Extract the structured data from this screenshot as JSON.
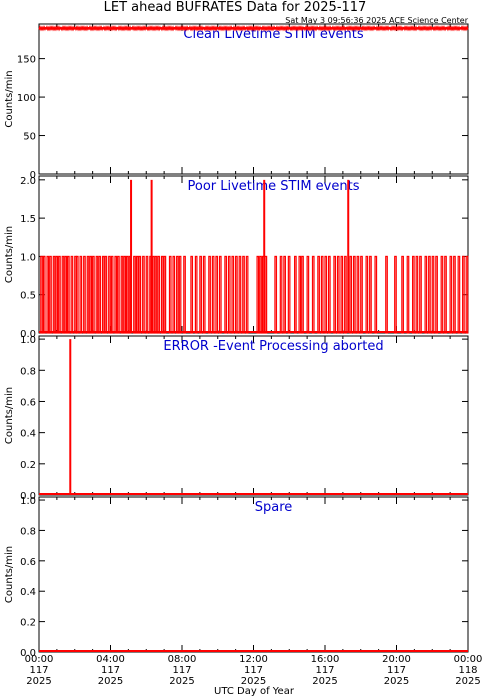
{
  "title": "LET ahead BUFRATES Data for 2025-117",
  "timestamp": "Sat May  3 09:56:36 2025 ACE Science Center",
  "xlabel": "UTC Day of Year",
  "x_ticks": [
    {
      "time": "00:00",
      "doy": "117",
      "year": "2025"
    },
    {
      "time": "04:00",
      "doy": "117",
      "year": "2025"
    },
    {
      "time": "08:00",
      "doy": "117",
      "year": "2025"
    },
    {
      "time": "12:00",
      "doy": "117",
      "year": "2025"
    },
    {
      "time": "16:00",
      "doy": "117",
      "year": "2025"
    },
    {
      "time": "20:00",
      "doy": "117",
      "year": "2025"
    },
    {
      "time": "00:00",
      "doy": "118",
      "year": "2025"
    }
  ],
  "colors": {
    "data": "#ff0000",
    "panel_title": "#0000cc",
    "axes": "#000000"
  },
  "chart_data": [
    {
      "type": "line",
      "title": "Clean Livetime STIM events",
      "ylabel": "Counts/min",
      "ylim": [
        0,
        195
      ],
      "yticks": [
        0,
        50,
        100,
        150
      ],
      "xlim_hours": [
        0,
        24
      ],
      "baseline": 189,
      "noise": [
        188,
        191
      ],
      "spikes": []
    },
    {
      "type": "line",
      "title": "Poor Livetime STIM events",
      "ylabel": "Counts/min",
      "ylim": [
        0,
        2.05
      ],
      "yticks": [
        0.0,
        0.5,
        1.0,
        1.5,
        2.0
      ],
      "xlim_hours": [
        0,
        24
      ],
      "baseline": 0,
      "pulse_value": 1,
      "pulses_hours": [
        0.1,
        0.25,
        0.45,
        0.6,
        0.8,
        0.95,
        1.1,
        1.3,
        1.45,
        1.6,
        1.8,
        2.0,
        2.1,
        2.3,
        2.5,
        2.7,
        2.85,
        3.0,
        3.2,
        3.35,
        3.55,
        3.7,
        3.9,
        4.05,
        4.25,
        4.4,
        4.6,
        4.75,
        4.9,
        5.05,
        5.3,
        5.45,
        5.6,
        5.8,
        6.0,
        6.2,
        6.35,
        6.5,
        6.65,
        6.85,
        7.0,
        7.3,
        7.5,
        7.7,
        7.85,
        8.1,
        8.5,
        8.75,
        9.0,
        9.2,
        9.5,
        9.7,
        9.9,
        10.1,
        10.4,
        10.6,
        10.8,
        11.0,
        11.2,
        11.4,
        11.6,
        12.2,
        12.35,
        12.5,
        12.65,
        13.2,
        13.5,
        13.7,
        13.95,
        14.3,
        14.55,
        14.7,
        15.0,
        15.3,
        15.6,
        15.8,
        16.0,
        16.2,
        16.5,
        16.7,
        16.9,
        17.1,
        17.4,
        17.6,
        17.8,
        18.0,
        18.3,
        18.5,
        18.8,
        19.4,
        19.9,
        20.3,
        20.6,
        20.9,
        21.1,
        21.3,
        21.6,
        21.8,
        22.0,
        22.2,
        22.5,
        22.7,
        23.0,
        23.2,
        23.45,
        23.7,
        23.9
      ],
      "spikes": [
        {
          "hour": 5.15,
          "value": 2
        },
        {
          "hour": 6.3,
          "value": 2
        },
        {
          "hour": 12.6,
          "value": 2
        },
        {
          "hour": 17.3,
          "value": 2
        }
      ]
    },
    {
      "type": "line",
      "title": "ERROR -Event Processing aborted",
      "ylabel": "Counts/min",
      "ylim": [
        0,
        1.02
      ],
      "yticks": [
        0.0,
        0.2,
        0.4,
        0.6,
        0.8,
        1.0
      ],
      "xlim_hours": [
        0,
        24
      ],
      "baseline": 0,
      "spikes": [
        {
          "hour": 1.75,
          "value": 1
        }
      ]
    },
    {
      "type": "line",
      "title": "Spare",
      "ylabel": "Counts/min",
      "ylim": [
        0,
        1.02
      ],
      "yticks": [
        0.0,
        0.2,
        0.4,
        0.6,
        0.8,
        1.0
      ],
      "xlim_hours": [
        0,
        24
      ],
      "baseline": 0,
      "spikes": []
    }
  ]
}
